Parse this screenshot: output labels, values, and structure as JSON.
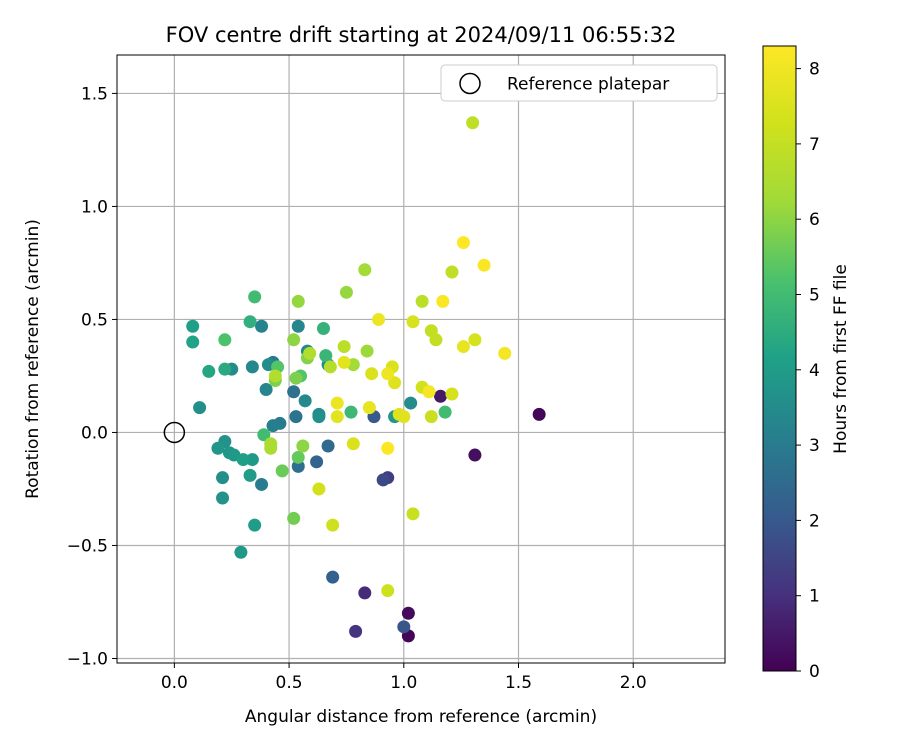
{
  "chart_data": {
    "type": "scatter",
    "title": "FOV centre drift starting at 2024/09/11 06:55:32",
    "xlabel": "Angular distance from reference (arcmin)",
    "ylabel": "Rotation from reference (arcmin)",
    "xlim": [
      -0.25,
      2.4
    ],
    "ylim": [
      -1.02,
      1.67
    ],
    "xticks": [
      0.0,
      0.5,
      1.0,
      1.5,
      2.0
    ],
    "xtick_labels": [
      "0.0",
      "0.5",
      "1.0",
      "1.5",
      "2.0"
    ],
    "yticks": [
      -1.0,
      -0.5,
      0.0,
      0.5,
      1.0,
      1.5
    ],
    "ytick_labels": [
      "−1.0",
      "−0.5",
      "0.0",
      "0.5",
      "1.0",
      "1.5"
    ],
    "grid": true,
    "legend": {
      "position": "top-right",
      "entries": [
        "Reference platepar"
      ]
    },
    "reference_point": {
      "x": 0.0,
      "y": 0.0
    },
    "colorbar": {
      "label": "Hours from first FF file",
      "colormap": "viridis",
      "range": [
        0,
        8.3
      ],
      "ticks": [
        0,
        1,
        2,
        3,
        4,
        5,
        6,
        7,
        8
      ],
      "tick_labels": [
        "0",
        "1",
        "2",
        "3",
        "4",
        "5",
        "6",
        "7",
        "8"
      ]
    },
    "points": [
      {
        "x": 1.59,
        "y": 0.08,
        "c": 0.1
      },
      {
        "x": 1.02,
        "y": -0.9,
        "c": 0.1
      },
      {
        "x": 1.02,
        "y": -0.8,
        "c": 0.2
      },
      {
        "x": 1.31,
        "y": -0.1,
        "c": 0.3
      },
      {
        "x": 1.16,
        "y": 0.16,
        "c": 0.5
      },
      {
        "x": 0.83,
        "y": -0.71,
        "c": 0.9
      },
      {
        "x": 0.79,
        "y": -0.88,
        "c": 1.1
      },
      {
        "x": 0.93,
        "y": -0.2,
        "c": 1.3
      },
      {
        "x": 0.91,
        "y": -0.21,
        "c": 1.6
      },
      {
        "x": 1.0,
        "y": -0.86,
        "c": 1.9
      },
      {
        "x": 0.87,
        "y": 0.07,
        "c": 2.0
      },
      {
        "x": 0.69,
        "y": -0.64,
        "c": 2.2
      },
      {
        "x": 0.62,
        "y": -0.13,
        "c": 2.3
      },
      {
        "x": 0.67,
        "y": -0.06,
        "c": 2.5
      },
      {
        "x": 0.54,
        "y": -0.15,
        "c": 2.6
      },
      {
        "x": 0.52,
        "y": 0.18,
        "c": 2.7
      },
      {
        "x": 0.53,
        "y": 0.07,
        "c": 2.8
      },
      {
        "x": 0.43,
        "y": 0.31,
        "c": 2.9
      },
      {
        "x": 0.46,
        "y": 0.04,
        "c": 3.0
      },
      {
        "x": 0.43,
        "y": 0.03,
        "c": 3.1
      },
      {
        "x": 0.38,
        "y": -0.23,
        "c": 3.0
      },
      {
        "x": 0.38,
        "y": 0.47,
        "c": 3.2
      },
      {
        "x": 0.54,
        "y": 0.47,
        "c": 3.3
      },
      {
        "x": 0.57,
        "y": 0.14,
        "c": 3.4
      },
      {
        "x": 0.63,
        "y": 0.08,
        "c": 3.5
      },
      {
        "x": 0.63,
        "y": 0.07,
        "c": 3.6
      },
      {
        "x": 0.67,
        "y": 0.3,
        "c": 3.6
      },
      {
        "x": 0.58,
        "y": 0.36,
        "c": 3.4
      },
      {
        "x": 0.4,
        "y": 0.19,
        "c": 3.3
      },
      {
        "x": 0.41,
        "y": 0.3,
        "c": 3.5
      },
      {
        "x": 0.34,
        "y": 0.29,
        "c": 3.4
      },
      {
        "x": 0.25,
        "y": 0.28,
        "c": 3.5
      },
      {
        "x": 0.11,
        "y": 0.11,
        "c": 3.6
      },
      {
        "x": 0.21,
        "y": -0.2,
        "c": 3.6
      },
      {
        "x": 0.21,
        "y": -0.29,
        "c": 3.7
      },
      {
        "x": 0.22,
        "y": -0.04,
        "c": 3.7
      },
      {
        "x": 0.19,
        "y": -0.07,
        "c": 3.8
      },
      {
        "x": 0.24,
        "y": -0.09,
        "c": 3.8
      },
      {
        "x": 0.26,
        "y": -0.1,
        "c": 3.9
      },
      {
        "x": 0.34,
        "y": -0.12,
        "c": 3.9
      },
      {
        "x": 0.29,
        "y": -0.53,
        "c": 3.9
      },
      {
        "x": 0.35,
        "y": -0.41,
        "c": 4.0
      },
      {
        "x": 0.33,
        "y": -0.19,
        "c": 4.0
      },
      {
        "x": 0.3,
        "y": -0.12,
        "c": 4.1
      },
      {
        "x": 0.96,
        "y": 0.07,
        "c": 3.8
      },
      {
        "x": 1.03,
        "y": 0.13,
        "c": 3.5
      },
      {
        "x": 0.08,
        "y": 0.47,
        "c": 4.1
      },
      {
        "x": 0.08,
        "y": 0.4,
        "c": 4.2
      },
      {
        "x": 0.15,
        "y": 0.27,
        "c": 4.3
      },
      {
        "x": 0.22,
        "y": 0.28,
        "c": 4.4
      },
      {
        "x": 0.33,
        "y": 0.49,
        "c": 4.6
      },
      {
        "x": 0.35,
        "y": 0.6,
        "c": 5.0
      },
      {
        "x": 0.65,
        "y": 0.46,
        "c": 4.7
      },
      {
        "x": 0.66,
        "y": 0.34,
        "c": 4.8
      },
      {
        "x": 0.77,
        "y": 0.09,
        "c": 4.9
      },
      {
        "x": 1.18,
        "y": 0.09,
        "c": 5.0
      },
      {
        "x": 0.39,
        "y": -0.01,
        "c": 5.0
      },
      {
        "x": 0.22,
        "y": 0.41,
        "c": 5.2
      },
      {
        "x": 0.45,
        "y": 0.29,
        "c": 5.3
      },
      {
        "x": 0.55,
        "y": 0.25,
        "c": 5.3
      },
      {
        "x": 0.54,
        "y": -0.11,
        "c": 5.5
      },
      {
        "x": 0.47,
        "y": -0.17,
        "c": 5.6
      },
      {
        "x": 0.52,
        "y": -0.38,
        "c": 5.7
      },
      {
        "x": 0.44,
        "y": 0.23,
        "c": 5.8
      },
      {
        "x": 0.53,
        "y": 0.24,
        "c": 5.8
      },
      {
        "x": 0.58,
        "y": 0.33,
        "c": 5.9
      },
      {
        "x": 0.56,
        "y": -0.06,
        "c": 6.0
      },
      {
        "x": 0.52,
        "y": 0.41,
        "c": 6.0
      },
      {
        "x": 0.54,
        "y": 0.58,
        "c": 6.1
      },
      {
        "x": 0.75,
        "y": 0.62,
        "c": 6.1
      },
      {
        "x": 0.84,
        "y": 0.36,
        "c": 6.2
      },
      {
        "x": 0.78,
        "y": 0.3,
        "c": 6.3
      },
      {
        "x": 0.83,
        "y": 0.72,
        "c": 6.3
      },
      {
        "x": 0.42,
        "y": -0.05,
        "c": 6.4
      },
      {
        "x": 0.42,
        "y": -0.07,
        "c": 6.5
      },
      {
        "x": 0.44,
        "y": 0.25,
        "c": 6.6
      },
      {
        "x": 0.59,
        "y": 0.35,
        "c": 6.6
      },
      {
        "x": 0.68,
        "y": 0.29,
        "c": 6.7
      },
      {
        "x": 0.74,
        "y": 0.38,
        "c": 6.8
      },
      {
        "x": 1.08,
        "y": 0.58,
        "c": 6.8
      },
      {
        "x": 1.21,
        "y": 0.71,
        "c": 6.9
      },
      {
        "x": 1.3,
        "y": 1.37,
        "c": 6.9
      },
      {
        "x": 1.12,
        "y": 0.45,
        "c": 7.0
      },
      {
        "x": 1.14,
        "y": 0.41,
        "c": 7.0
      },
      {
        "x": 1.12,
        "y": 0.07,
        "c": 7.1
      },
      {
        "x": 1.04,
        "y": -0.36,
        "c": 7.1
      },
      {
        "x": 0.93,
        "y": -0.7,
        "c": 7.2
      },
      {
        "x": 0.69,
        "y": -0.41,
        "c": 7.2
      },
      {
        "x": 0.63,
        "y": -0.25,
        "c": 7.3
      },
      {
        "x": 1.08,
        "y": 0.2,
        "c": 7.3
      },
      {
        "x": 1.21,
        "y": 0.17,
        "c": 7.4
      },
      {
        "x": 1.31,
        "y": 0.41,
        "c": 7.4
      },
      {
        "x": 1.04,
        "y": 0.49,
        "c": 7.4
      },
      {
        "x": 0.78,
        "y": -0.05,
        "c": 7.5
      },
      {
        "x": 0.86,
        "y": 0.26,
        "c": 7.5
      },
      {
        "x": 0.95,
        "y": 0.29,
        "c": 7.5
      },
      {
        "x": 0.96,
        "y": 0.22,
        "c": 7.6
      },
      {
        "x": 0.98,
        "y": 0.08,
        "c": 7.6
      },
      {
        "x": 1.0,
        "y": 0.07,
        "c": 7.6
      },
      {
        "x": 0.71,
        "y": 0.07,
        "c": 7.7
      },
      {
        "x": 0.74,
        "y": 0.31,
        "c": 7.7
      },
      {
        "x": 0.85,
        "y": 0.11,
        "c": 7.8
      },
      {
        "x": 1.26,
        "y": 0.38,
        "c": 7.8
      },
      {
        "x": 0.71,
        "y": 0.13,
        "c": 7.9
      },
      {
        "x": 0.89,
        "y": 0.5,
        "c": 7.9
      },
      {
        "x": 0.93,
        "y": 0.26,
        "c": 8.0
      },
      {
        "x": 1.11,
        "y": 0.18,
        "c": 8.1
      },
      {
        "x": 1.44,
        "y": 0.35,
        "c": 8.1
      },
      {
        "x": 1.17,
        "y": 0.58,
        "c": 8.2
      },
      {
        "x": 1.35,
        "y": 0.74,
        "c": 8.2
      },
      {
        "x": 1.26,
        "y": 0.84,
        "c": 8.3
      },
      {
        "x": 0.93,
        "y": -0.07,
        "c": 8.3
      }
    ]
  }
}
